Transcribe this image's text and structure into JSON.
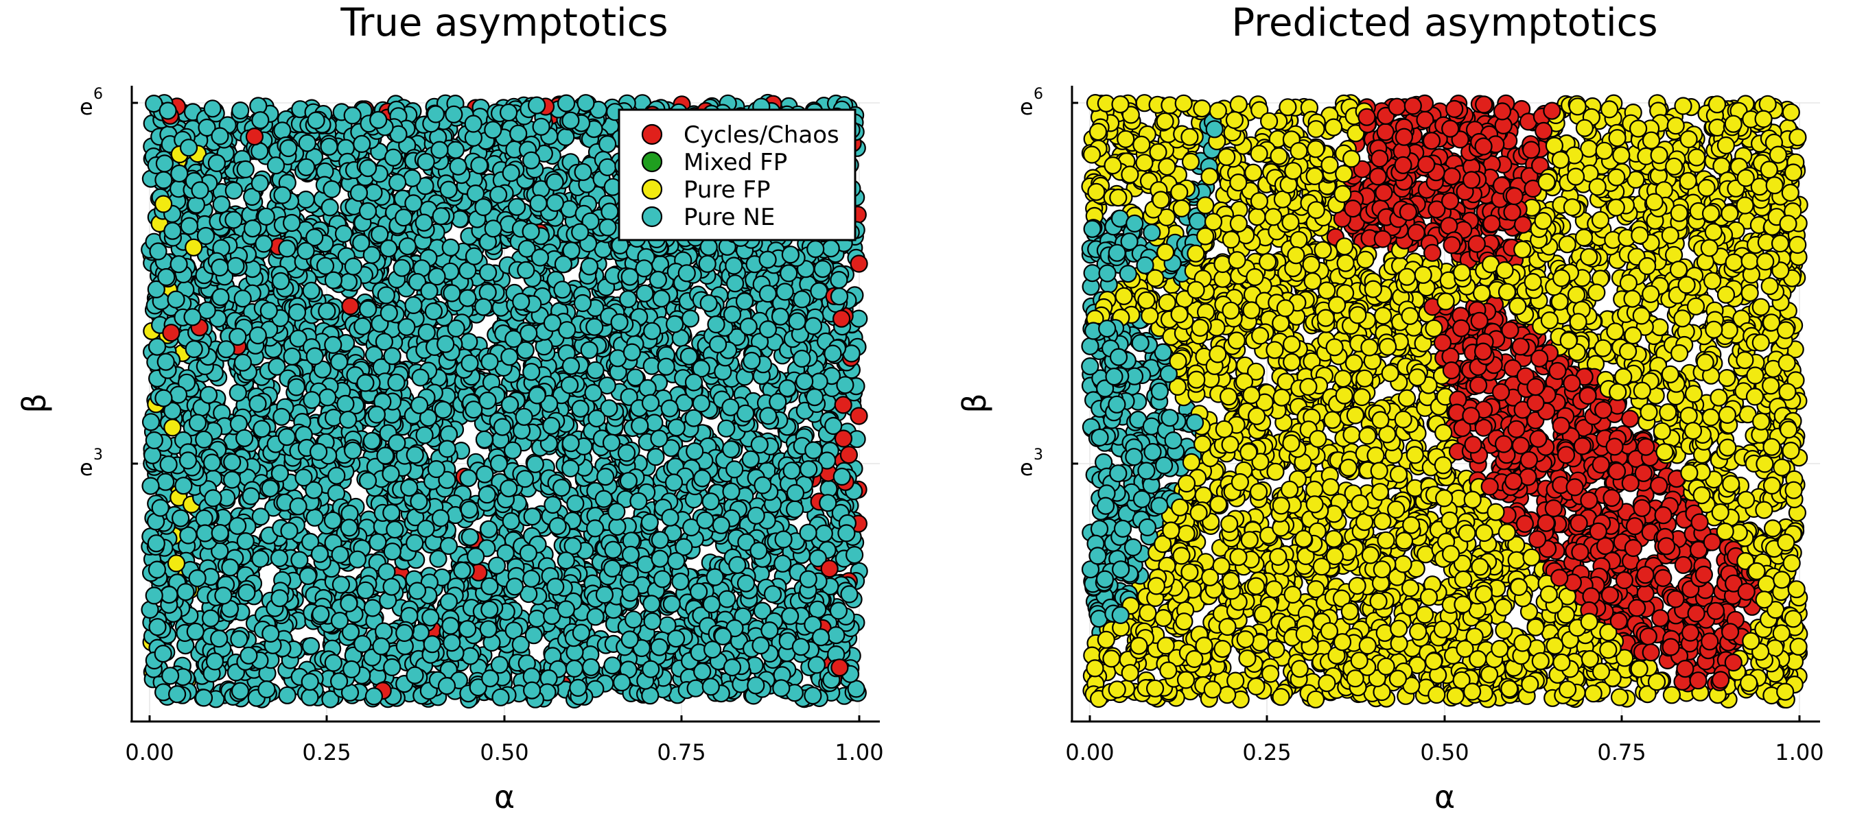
{
  "chart_data": [
    {
      "type": "scatter",
      "title": "True asymptotics",
      "xlabel": "α",
      "ylabel": "β",
      "xlim": [
        0,
        1
      ],
      "ylim": [
        0,
        6
      ],
      "yscale": "log (base e)",
      "x_ticks": [
        "0.00",
        "0.25",
        "0.50",
        "0.75",
        "1.00"
      ],
      "y_ticks": [
        {
          "base": "e",
          "exp": "3"
        },
        {
          "base": "e",
          "exp": "6"
        }
      ],
      "grid": true,
      "legend_position": "top-right",
      "legend": [
        "Cycles/Chaos",
        "Mixed FP",
        "Pure FP",
        "Pure NE"
      ],
      "class_colors": {
        "Cycles/Chaos": "#e0201b",
        "Mixed FP": "#1f9e1f",
        "Pure FP": "#f2ea10",
        "Pure NE": "#3cc0bd"
      },
      "regions": [
        {
          "class": "Pure NE",
          "share": "almost all points"
        },
        {
          "class": "Cycles/Chaos",
          "share": "sparse, mostly near α≈1 and top edge"
        },
        {
          "class": "Pure FP",
          "share": "sparse, near α≈0"
        }
      ]
    },
    {
      "type": "scatter",
      "title": "Predicted asymptotics",
      "xlabel": "α",
      "ylabel": "β",
      "xlim": [
        0,
        1
      ],
      "ylim": [
        0,
        6
      ],
      "yscale": "log (base e)",
      "x_ticks": [
        "0.00",
        "0.25",
        "0.50",
        "0.75",
        "1.00"
      ],
      "y_ticks": [
        {
          "base": "e",
          "exp": "3"
        },
        {
          "base": "e",
          "exp": "6"
        }
      ],
      "grid": true,
      "class_colors": {
        "Cycles/Chaos": "#e0201b",
        "Mixed FP": "#1f9e1f",
        "Pure FP": "#f2ea10",
        "Pure NE": "#3cc0bd"
      },
      "regions": [
        {
          "class": "Pure FP",
          "share": "background (majority)"
        },
        {
          "class": "Cycles/Chaos",
          "polygon_alpha_lnbeta": [
            [
              0.39,
              6.0
            ],
            [
              0.66,
              6.0
            ],
            [
              0.6,
              4.5
            ],
            [
              0.53,
              4.55
            ],
            [
              0.34,
              4.75
            ]
          ]
        },
        {
          "class": "Cycles/Chaos",
          "polygon_alpha_lnbeta": [
            [
              0.48,
              4.15
            ],
            [
              0.58,
              4.15
            ],
            [
              0.72,
              3.45
            ],
            [
              0.95,
              1.55
            ],
            [
              0.9,
              0.65
            ],
            [
              0.83,
              0.6
            ],
            [
              0.7,
              1.3
            ],
            [
              0.52,
              2.7
            ]
          ]
        },
        {
          "class": "Pure NE",
          "polygon_alpha_lnbeta": [
            [
              0.0,
              4.0
            ],
            [
              0.0,
              1.0
            ],
            [
              0.05,
              1.3
            ],
            [
              0.1,
              2.0
            ],
            [
              0.15,
              2.8
            ],
            [
              0.16,
              3.1
            ],
            [
              0.12,
              3.3
            ],
            [
              0.1,
              3.9
            ],
            [
              0.08,
              4.0
            ]
          ]
        },
        {
          "class": "Pure NE",
          "polygon_alpha_lnbeta": [
            [
              0.0,
              4.0
            ],
            [
              0.0,
              4.95
            ],
            [
              0.08,
              4.95
            ],
            [
              0.1,
              4.6
            ],
            [
              0.04,
              4.3
            ]
          ]
        },
        {
          "class": "Pure NE",
          "polygon_alpha_lnbeta": [
            [
              0.11,
              4.45
            ],
            [
              0.13,
              5.0
            ],
            [
              0.16,
              5.9
            ],
            [
              0.18,
              5.8
            ],
            [
              0.16,
              5.0
            ],
            [
              0.13,
              4.2
            ]
          ]
        }
      ]
    }
  ]
}
